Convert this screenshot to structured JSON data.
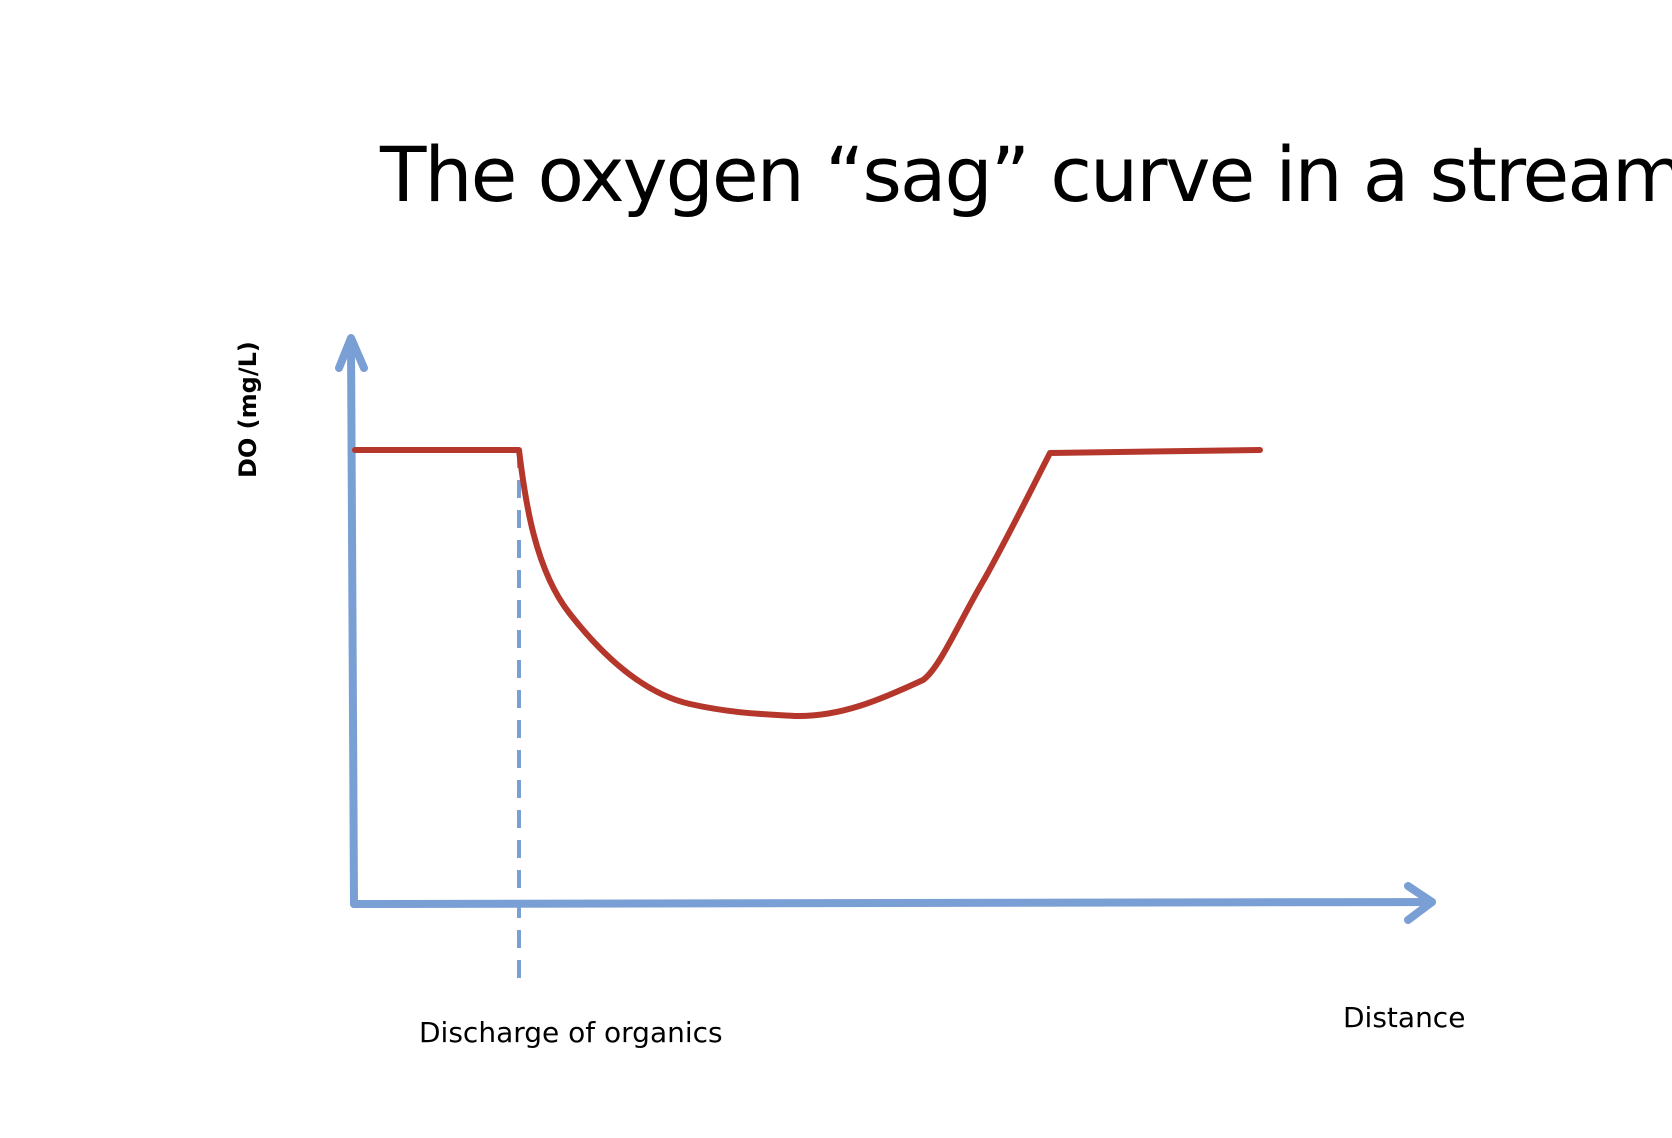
{
  "title": "The oxygen “sag” curve in a stream",
  "axes": {
    "y_label": "DO (mg/L)",
    "x_label": "Distance"
  },
  "annotations": {
    "discharge_label": "Discharge of organics"
  },
  "colors": {
    "axis": "#7a9fd4",
    "curve": "#b5372b",
    "text": "#000000"
  }
}
